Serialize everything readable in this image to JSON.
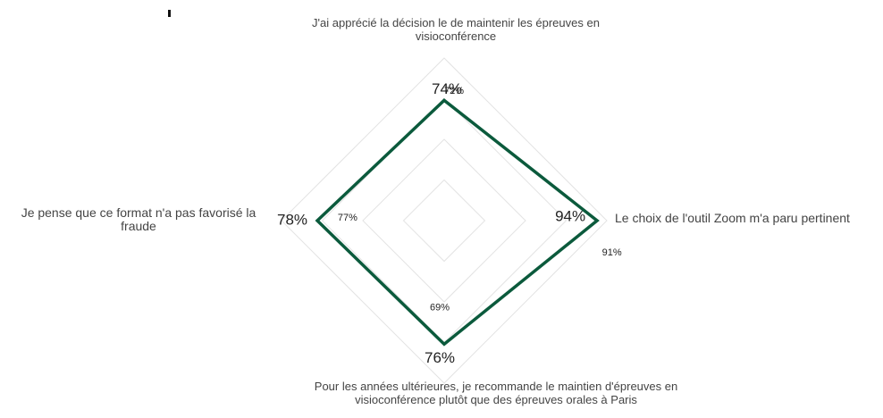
{
  "chart_data": {
    "type": "radar",
    "categories": [
      "J'ai apprécié la décision le de maintenir les épreuves en visioconférence",
      "Le choix de l'outil Zoom m'a paru pertinent",
      "Pour les années ultérieures, je recommande le maintien d'épreuves en visioconférence plutôt que des épreuves orales à Paris",
      "Je pense que ce format n'a pas favorisé la fraude"
    ],
    "series": [
      {
        "color": "#0b5a3c",
        "values": [
          74,
          94,
          76,
          78
        ],
        "value_labels": [
          "74%",
          "94%",
          "76%",
          "78%"
        ]
      },
      {
        "color": "#ffffff",
        "values": [
          72,
          91,
          69,
          77
        ],
        "value_labels": [
          "72%",
          "91%",
          "69%",
          "77%"
        ]
      }
    ],
    "ylim": [
      0,
      100
    ],
    "yticks": [
      25,
      50,
      75,
      100
    ],
    "grid": true
  }
}
